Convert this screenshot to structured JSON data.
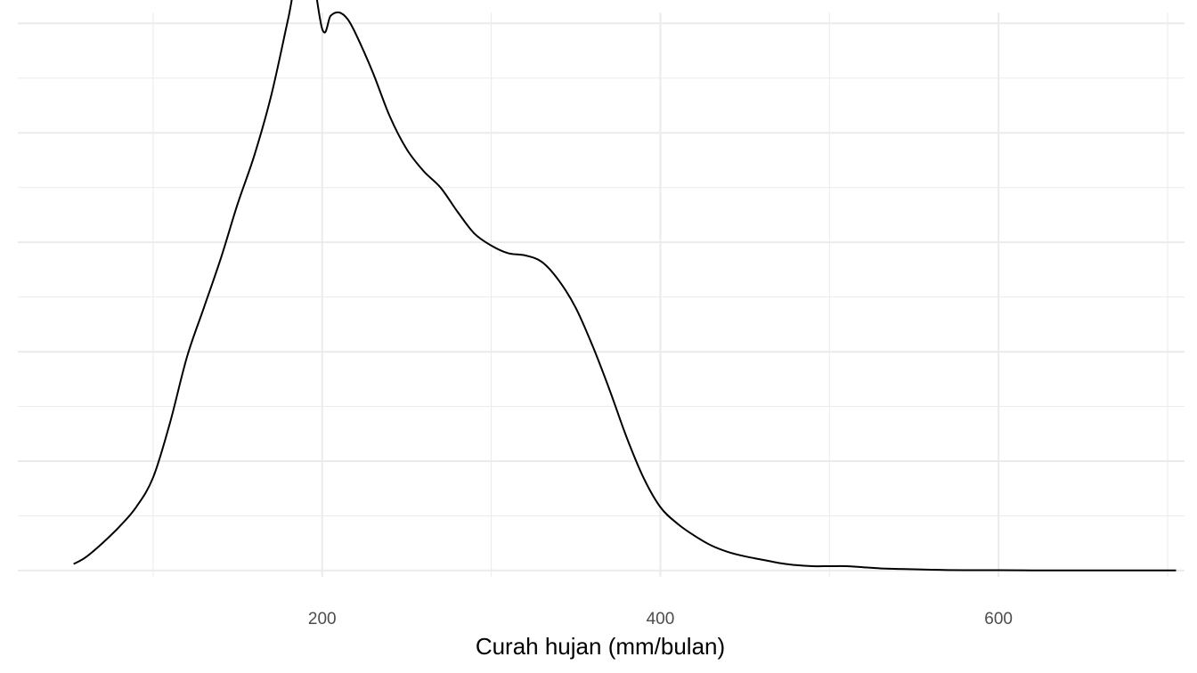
{
  "chart_data": {
    "type": "line",
    "title": "",
    "xlabel": "Curah hujan (mm/bulan)",
    "ylabel": "",
    "xlim": [
      20,
      710
    ],
    "ylim": [
      -5.75e-05,
      0.0051
    ],
    "x_ticks": [
      200,
      400,
      600
    ],
    "x_tick_labels": [
      "200",
      "400",
      "600"
    ],
    "x_minor_ticks": [
      100,
      300,
      500,
      700
    ],
    "y_major_gridlines": [
      0,
      0.001,
      0.002,
      0.003,
      0.004,
      0.005
    ],
    "y_minor_gridlines": [
      0.0005,
      0.0015,
      0.0025,
      0.0035,
      0.0045
    ],
    "y_tick_labels_shown": false,
    "grid": true,
    "line_color": "#000000",
    "grid_color": "#ebebeb",
    "series": [
      {
        "x": [
          53,
          60,
          70,
          80,
          90,
          100,
          110,
          120,
          130,
          140,
          150,
          160,
          170,
          180,
          190,
          200,
          205,
          210,
          215,
          220,
          230,
          240,
          250,
          260,
          270,
          280,
          290,
          300,
          310,
          320,
          330,
          340,
          350,
          360,
          370,
          380,
          390,
          400,
          410,
          420,
          430,
          440,
          450,
          460,
          470,
          480,
          490,
          500,
          510,
          520,
          530,
          540,
          550,
          560,
          570,
          580,
          590,
          600,
          620,
          640,
          660,
          680,
          700,
          705
        ],
        "y": [
          6e-05,
          0.00012,
          0.00025,
          0.0004,
          0.00058,
          0.00085,
          0.00135,
          0.00195,
          0.0024,
          0.00285,
          0.00335,
          0.0038,
          0.00435,
          0.00505,
          0.00575,
          0.00495,
          0.00507,
          0.0051,
          0.00504,
          0.0049,
          0.00455,
          0.00415,
          0.00385,
          0.00365,
          0.0035,
          0.00328,
          0.00308,
          0.00297,
          0.0029,
          0.00288,
          0.00282,
          0.00265,
          0.0024,
          0.00205,
          0.00165,
          0.00122,
          0.00085,
          0.00058,
          0.00043,
          0.00032,
          0.00023,
          0.00017,
          0.00013,
          0.0001,
          7e-05,
          5e-05,
          4e-05,
          4e-05,
          4e-05,
          3e-05,
          2e-05,
          1.5e-05,
          1.2e-05,
          8e-06,
          5e-06,
          3e-06,
          3e-06,
          3e-06,
          2e-06,
          2e-06,
          1e-06,
          1e-06,
          1e-06,
          1e-06
        ]
      }
    ]
  }
}
